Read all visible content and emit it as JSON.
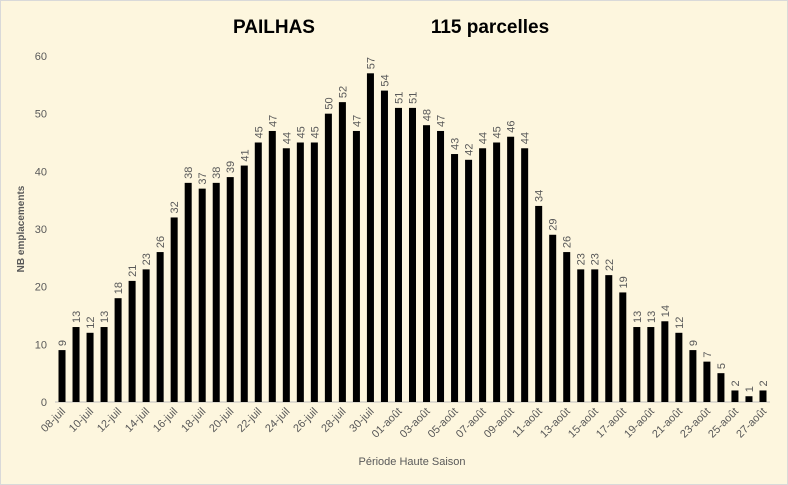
{
  "chart_data": {
    "type": "bar",
    "title": "PAILHAS",
    "subtitle": "115 parcelles",
    "x_label": "Période Haute Saison",
    "y_label": "NB emplacements",
    "categories": [
      "08-juil",
      null,
      "10-juil",
      null,
      "12-juil",
      null,
      "14-juil",
      null,
      "16-juil",
      null,
      "18-juil",
      null,
      "20-juil",
      null,
      "22-juil",
      null,
      "24-juil",
      null,
      "26-juil",
      null,
      "28-juil",
      null,
      "30-juil",
      null,
      "01-août",
      null,
      "03-août",
      null,
      "05-août",
      null,
      "07-août",
      null,
      "09-août",
      null,
      "11-août",
      null,
      "13-août",
      null,
      "15-août",
      null,
      "17-août",
      null,
      "19-août",
      null,
      "21-août",
      null,
      "23-août",
      null,
      "25-août",
      null,
      "27-août"
    ],
    "values": [
      9,
      13,
      12,
      13,
      18,
      21,
      23,
      26,
      32,
      38,
      37,
      38,
      39,
      41,
      45,
      47,
      44,
      45,
      45,
      50,
      52,
      47,
      57,
      54,
      51,
      51,
      48,
      47,
      43,
      42,
      44,
      45,
      46,
      44,
      34,
      29,
      26,
      23,
      23,
      22,
      19,
      13,
      13,
      14,
      12,
      9,
      7,
      5,
      2,
      1,
      2
    ],
    "color": "#000000",
    "ylim": [
      0,
      60
    ],
    "yticks": [
      0,
      10,
      20,
      30,
      40,
      50,
      60
    ],
    "grid": false
  }
}
